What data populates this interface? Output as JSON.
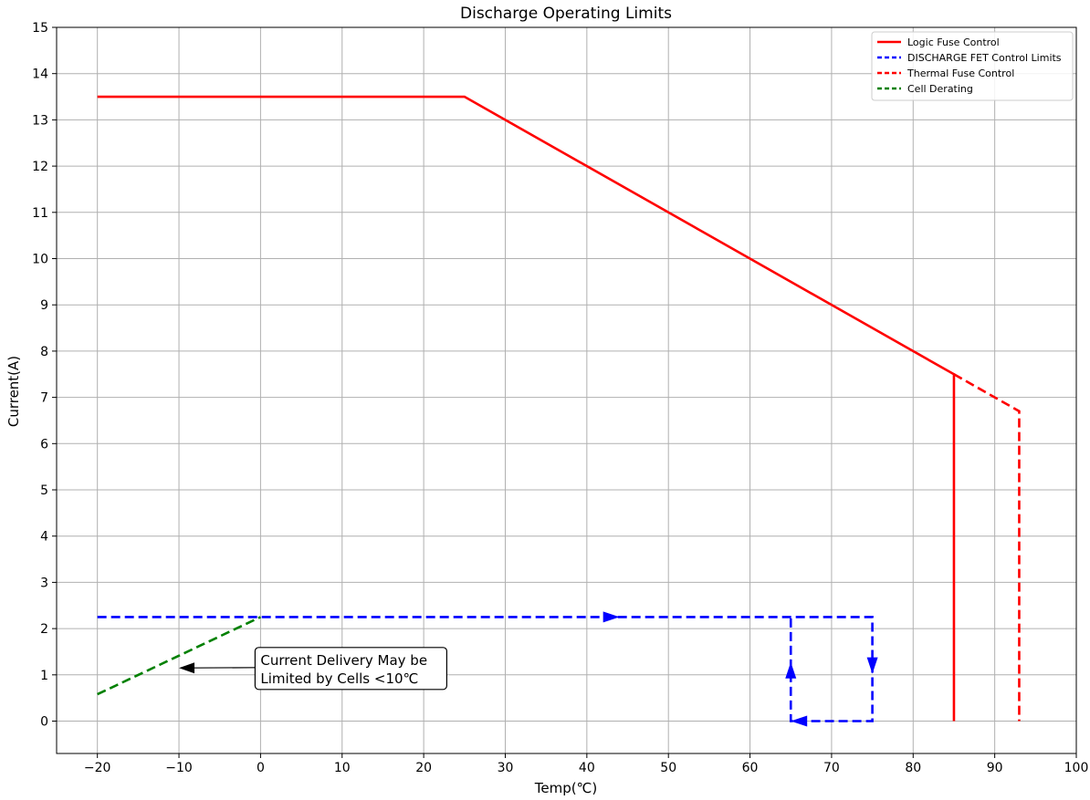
{
  "chart_data": {
    "type": "line",
    "title": "Discharge Operating Limits",
    "xlabel": "Temp(℃)",
    "ylabel": "Current(A)",
    "xlim": [
      -25,
      100
    ],
    "ylim": [
      -0.7,
      15
    ],
    "xticks": [
      "−20",
      "−10",
      "0",
      "10",
      "20",
      "30",
      "40",
      "50",
      "60",
      "70",
      "80",
      "90",
      "100"
    ],
    "yticks": [
      "0",
      "1",
      "2",
      "3",
      "4",
      "5",
      "6",
      "7",
      "8",
      "9",
      "10",
      "11",
      "12",
      "13",
      "14",
      "15"
    ],
    "grid": true,
    "legend_position": "top-right",
    "series": [
      {
        "name": "Logic Fuse Control",
        "color": "#ff0000",
        "dash": "solid",
        "points": [
          [
            -20,
            13.5
          ],
          [
            25,
            13.5
          ],
          [
            85,
            7.5
          ],
          [
            85,
            0
          ]
        ]
      },
      {
        "name": "DISCHARGE FET Control Limits",
        "color": "#0000ff",
        "dash": "dashed",
        "points": [
          [
            -20,
            2.25
          ],
          [
            75,
            2.25
          ],
          [
            75,
            0
          ],
          [
            65,
            0
          ],
          [
            65,
            2.25
          ]
        ]
      },
      {
        "name": "Thermal Fuse Control",
        "color": "#ff0000",
        "dash": "dashed",
        "points": [
          [
            85,
            7.5
          ],
          [
            93,
            6.7
          ],
          [
            93,
            0
          ]
        ]
      },
      {
        "name": "Cell Derating",
        "color": "#008000",
        "dash": "dashed",
        "points": [
          [
            -20,
            0.58
          ],
          [
            0,
            2.25
          ]
        ]
      }
    ],
    "arrows": [
      {
        "x": 43,
        "y": 2.25,
        "dir": "right",
        "color": "#0000ff"
      },
      {
        "x": 75,
        "y": 1.2,
        "dir": "down",
        "color": "#0000ff"
      },
      {
        "x": 66,
        "y": 0,
        "dir": "left",
        "color": "#0000ff"
      },
      {
        "x": 65,
        "y": 1.1,
        "dir": "up",
        "color": "#0000ff"
      }
    ],
    "annotation": {
      "lines": [
        "Current Delivery May be",
        "Limited by Cells <10℃"
      ],
      "text_x": 0,
      "text_y": 1.0,
      "arrow_to": [
        -10,
        1.15
      ]
    }
  }
}
